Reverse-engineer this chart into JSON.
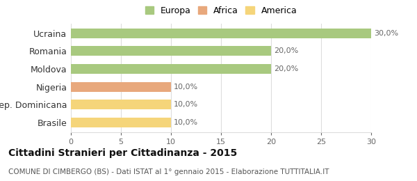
{
  "categories": [
    "Ucraina",
    "Romania",
    "Moldova",
    "Nigeria",
    "Rep. Dominicana",
    "Brasile"
  ],
  "values": [
    30.0,
    20.0,
    20.0,
    10.0,
    10.0,
    10.0
  ],
  "bar_colors": [
    "#a8c97f",
    "#a8c97f",
    "#a8c97f",
    "#e8a87c",
    "#f5d57a",
    "#f5d57a"
  ],
  "labels": [
    "30,0%",
    "20,0%",
    "20,0%",
    "10,0%",
    "10,0%",
    "10,0%"
  ],
  "legend": [
    {
      "label": "Europa",
      "color": "#a8c97f"
    },
    {
      "label": "Africa",
      "color": "#e8a87c"
    },
    {
      "label": "America",
      "color": "#f5d57a"
    }
  ],
  "xlim": [
    0,
    30
  ],
  "xticks": [
    0,
    5,
    10,
    15,
    20,
    25,
    30
  ],
  "title": "Cittadini Stranieri per Cittadinanza - 2015",
  "subtitle": "COMUNE DI CIMBERGO (BS) - Dati ISTAT al 1° gennaio 2015 - Elaborazione TUTTITALIA.IT",
  "background_color": "#ffffff",
  "grid_color": "#dddddd",
  "bar_label_fontsize": 8,
  "title_fontsize": 10,
  "subtitle_fontsize": 7.5,
  "ylabel_fontsize": 9,
  "legend_fontsize": 9
}
